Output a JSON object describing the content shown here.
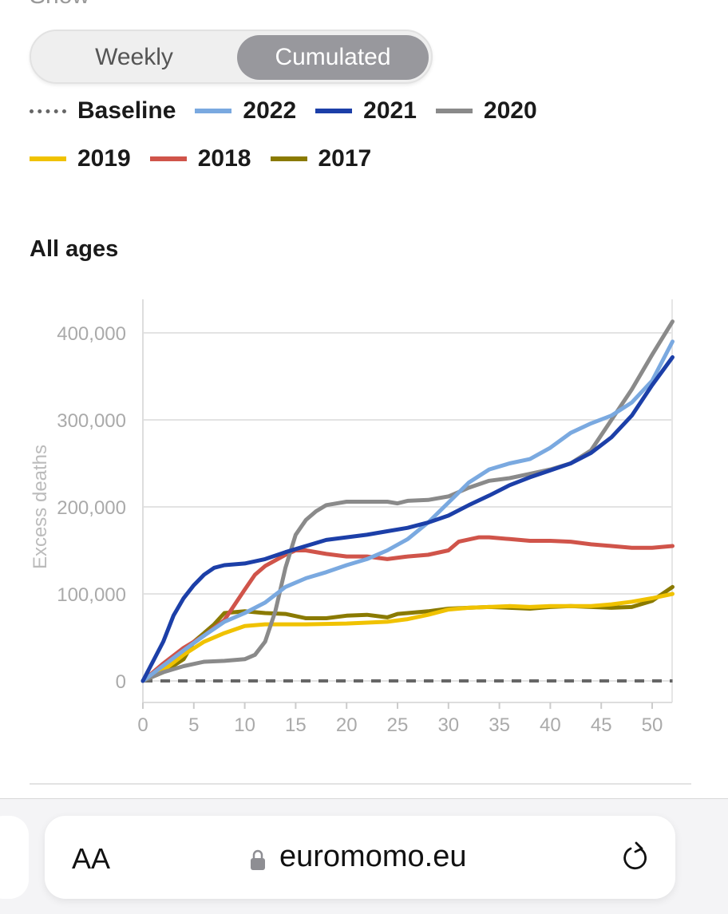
{
  "header": {
    "show_label": "Show"
  },
  "toggle": {
    "options": [
      "Weekly",
      "Cumulated"
    ],
    "selected": "Cumulated"
  },
  "legend": [
    {
      "label": "Baseline",
      "color": "#666666",
      "style": "dotted"
    },
    {
      "label": "2022",
      "color": "#7aa9e0"
    },
    {
      "label": "2021",
      "color": "#1c3fa8"
    },
    {
      "label": "2020",
      "color": "#8a8a8a"
    },
    {
      "label": "2019",
      "color": "#f0c200"
    },
    {
      "label": "2018",
      "color": "#d0544a"
    },
    {
      "label": "2017",
      "color": "#8a7a00"
    }
  ],
  "section_title": "All ages",
  "chart_data": {
    "type": "line",
    "title": "All ages",
    "xlabel": "",
    "ylabel": "Excess deaths",
    "xlim": [
      0,
      52
    ],
    "ylim": [
      0,
      400000
    ],
    "xticks": [
      "0",
      "5",
      "10",
      "15",
      "20",
      "25",
      "30",
      "35",
      "40",
      "45",
      "50"
    ],
    "yticks": [
      "0",
      "100,000",
      "200,000",
      "300,000",
      "400,000"
    ],
    "grid": "horizontal",
    "series": [
      {
        "name": "Baseline",
        "color": "#666666",
        "dashed": true,
        "points": [
          [
            0,
            0
          ],
          [
            52,
            0
          ]
        ]
      },
      {
        "name": "2017",
        "color": "#8a7a00",
        "points": [
          [
            0,
            0
          ],
          [
            2,
            10000
          ],
          [
            4,
            25000
          ],
          [
            5,
            45000
          ],
          [
            6,
            55000
          ],
          [
            7,
            65000
          ],
          [
            8,
            78000
          ],
          [
            10,
            80000
          ],
          [
            12,
            78000
          ],
          [
            14,
            77000
          ],
          [
            16,
            72000
          ],
          [
            18,
            72000
          ],
          [
            20,
            75000
          ],
          [
            22,
            76000
          ],
          [
            24,
            73000
          ],
          [
            25,
            77000
          ],
          [
            26,
            78000
          ],
          [
            28,
            80000
          ],
          [
            30,
            83000
          ],
          [
            32,
            84000
          ],
          [
            34,
            85000
          ],
          [
            36,
            84000
          ],
          [
            38,
            83000
          ],
          [
            40,
            85000
          ],
          [
            42,
            86000
          ],
          [
            44,
            85000
          ],
          [
            46,
            84000
          ],
          [
            48,
            85000
          ],
          [
            50,
            92000
          ],
          [
            52,
            108000
          ]
        ]
      },
      {
        "name": "2019",
        "color": "#f0c200",
        "points": [
          [
            0,
            0
          ],
          [
            2,
            12000
          ],
          [
            4,
            30000
          ],
          [
            6,
            45000
          ],
          [
            8,
            55000
          ],
          [
            10,
            63000
          ],
          [
            12,
            65000
          ],
          [
            14,
            65000
          ],
          [
            16,
            65000
          ],
          [
            20,
            66000
          ],
          [
            24,
            68000
          ],
          [
            26,
            71000
          ],
          [
            28,
            76000
          ],
          [
            30,
            82000
          ],
          [
            32,
            84000
          ],
          [
            34,
            85000
          ],
          [
            36,
            86000
          ],
          [
            38,
            85000
          ],
          [
            40,
            86000
          ],
          [
            42,
            86000
          ],
          [
            44,
            86000
          ],
          [
            46,
            88000
          ],
          [
            48,
            91000
          ],
          [
            50,
            95000
          ],
          [
            52,
            100000
          ]
        ]
      },
      {
        "name": "2018",
        "color": "#d0544a",
        "points": [
          [
            0,
            0
          ],
          [
            2,
            20000
          ],
          [
            4,
            38000
          ],
          [
            6,
            52000
          ],
          [
            8,
            70000
          ],
          [
            10,
            105000
          ],
          [
            11,
            122000
          ],
          [
            12,
            132000
          ],
          [
            14,
            145000
          ],
          [
            15,
            150000
          ],
          [
            16,
            150000
          ],
          [
            18,
            146000
          ],
          [
            20,
            143000
          ],
          [
            22,
            143000
          ],
          [
            24,
            140000
          ],
          [
            26,
            143000
          ],
          [
            28,
            145000
          ],
          [
            30,
            150000
          ],
          [
            31,
            160000
          ],
          [
            33,
            165000
          ],
          [
            34,
            165000
          ],
          [
            36,
            163000
          ],
          [
            38,
            161000
          ],
          [
            40,
            161000
          ],
          [
            42,
            160000
          ],
          [
            44,
            157000
          ],
          [
            46,
            155000
          ],
          [
            48,
            153000
          ],
          [
            50,
            153000
          ],
          [
            52,
            155000
          ]
        ]
      },
      {
        "name": "2020",
        "color": "#8a8a8a",
        "points": [
          [
            0,
            0
          ],
          [
            2,
            10000
          ],
          [
            4,
            17000
          ],
          [
            6,
            22000
          ],
          [
            8,
            23000
          ],
          [
            10,
            25000
          ],
          [
            11,
            30000
          ],
          [
            12,
            45000
          ],
          [
            13,
            80000
          ],
          [
            14,
            130000
          ],
          [
            15,
            168000
          ],
          [
            16,
            185000
          ],
          [
            17,
            195000
          ],
          [
            18,
            202000
          ],
          [
            20,
            206000
          ],
          [
            24,
            206000
          ],
          [
            25,
            204000
          ],
          [
            26,
            207000
          ],
          [
            28,
            208000
          ],
          [
            30,
            212000
          ],
          [
            32,
            222000
          ],
          [
            34,
            230000
          ],
          [
            36,
            233000
          ],
          [
            38,
            238000
          ],
          [
            40,
            243000
          ],
          [
            42,
            250000
          ],
          [
            44,
            265000
          ],
          [
            46,
            300000
          ],
          [
            48,
            335000
          ],
          [
            50,
            375000
          ],
          [
            52,
            413000
          ]
        ]
      },
      {
        "name": "2022",
        "color": "#7aa9e0",
        "points": [
          [
            0,
            0
          ],
          [
            4,
            35000
          ],
          [
            6,
            52000
          ],
          [
            8,
            68000
          ],
          [
            10,
            78000
          ],
          [
            12,
            90000
          ],
          [
            14,
            108000
          ],
          [
            16,
            118000
          ],
          [
            18,
            125000
          ],
          [
            20,
            133000
          ],
          [
            22,
            140000
          ],
          [
            24,
            150000
          ],
          [
            26,
            163000
          ],
          [
            28,
            182000
          ],
          [
            30,
            205000
          ],
          [
            32,
            228000
          ],
          [
            34,
            243000
          ],
          [
            36,
            250000
          ],
          [
            38,
            255000
          ],
          [
            40,
            268000
          ],
          [
            42,
            285000
          ],
          [
            44,
            296000
          ],
          [
            46,
            305000
          ],
          [
            48,
            320000
          ],
          [
            50,
            345000
          ],
          [
            52,
            390000
          ]
        ]
      },
      {
        "name": "2021",
        "color": "#1c3fa8",
        "points": [
          [
            0,
            0
          ],
          [
            2,
            45000
          ],
          [
            3,
            75000
          ],
          [
            4,
            95000
          ],
          [
            5,
            110000
          ],
          [
            6,
            122000
          ],
          [
            7,
            130000
          ],
          [
            8,
            133000
          ],
          [
            10,
            135000
          ],
          [
            12,
            140000
          ],
          [
            14,
            148000
          ],
          [
            16,
            155000
          ],
          [
            18,
            162000
          ],
          [
            20,
            165000
          ],
          [
            22,
            168000
          ],
          [
            24,
            172000
          ],
          [
            26,
            176000
          ],
          [
            28,
            182000
          ],
          [
            30,
            190000
          ],
          [
            32,
            202000
          ],
          [
            34,
            213000
          ],
          [
            36,
            225000
          ],
          [
            38,
            234000
          ],
          [
            40,
            242000
          ],
          [
            42,
            250000
          ],
          [
            44,
            262000
          ],
          [
            46,
            280000
          ],
          [
            48,
            305000
          ],
          [
            50,
            340000
          ],
          [
            52,
            372000
          ]
        ]
      }
    ]
  },
  "browser": {
    "text_size_label": "AA",
    "url": "euromomo.eu"
  }
}
